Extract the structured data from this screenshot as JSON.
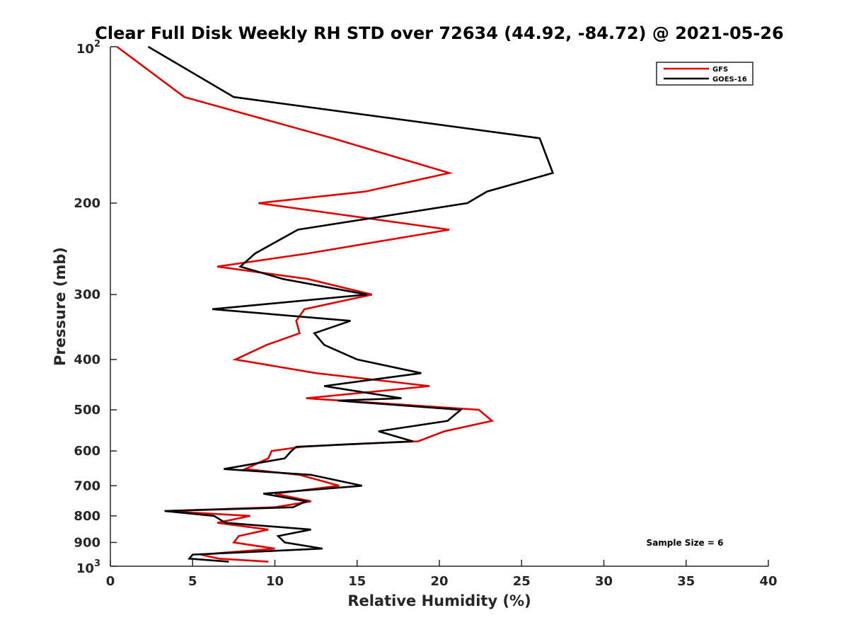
{
  "chart_data": {
    "type": "line",
    "title": "Clear Full Disk Weekly RH STD over 72634 (44.92, -84.72) @ 2021-05-26",
    "xlabel": "Relative Humidity (%)",
    "ylabel": "Pressure (mb)",
    "xlim": [
      0,
      40
    ],
    "ylim": [
      100,
      1000
    ],
    "y_scale": "log",
    "y_reversed": true,
    "x_ticks": [
      0,
      5,
      10,
      15,
      20,
      25,
      30,
      35,
      40
    ],
    "x_tick_labels": [
      "0",
      "5",
      "10",
      "15",
      "20",
      "25",
      "30",
      "35",
      "40"
    ],
    "y_ticks": [
      200,
      300,
      400,
      500,
      600,
      700,
      800,
      900
    ],
    "y_tick_labels": [
      "200",
      "300",
      "400",
      "500",
      "600",
      "700",
      "800",
      "900"
    ],
    "y_end_ticks": [
      {
        "value": 100,
        "base": "10",
        "exp": "2"
      },
      {
        "value": 1000,
        "base": "10",
        "exp": "3"
      }
    ],
    "grid": false,
    "legend_position": "top-right",
    "annotation": "Sample Size = 6",
    "series": [
      {
        "name": "GFS",
        "color": "#e00000",
        "points": [
          [
            0.4,
            100
          ],
          [
            4.5,
            125
          ],
          [
            13.5,
            150
          ],
          [
            20.6,
            175
          ],
          [
            15.5,
            190
          ],
          [
            9.0,
            200
          ],
          [
            20.6,
            225
          ],
          [
            12.0,
            250
          ],
          [
            6.5,
            265
          ],
          [
            12.0,
            280
          ],
          [
            15.9,
            300
          ],
          [
            11.8,
            320
          ],
          [
            11.3,
            337
          ],
          [
            11.5,
            356
          ],
          [
            9.5,
            375
          ],
          [
            7.6,
            400
          ],
          [
            12.5,
            425
          ],
          [
            19.4,
            450
          ],
          [
            11.9,
            475
          ],
          [
            22.4,
            500
          ],
          [
            23.2,
            525
          ],
          [
            20.3,
            550
          ],
          [
            18.7,
            575
          ],
          [
            14.5,
            582
          ],
          [
            11.6,
            589
          ],
          [
            9.8,
            600
          ],
          [
            9.6,
            620
          ],
          [
            8.2,
            650
          ],
          [
            11.5,
            667
          ],
          [
            13.9,
            700
          ],
          [
            10.0,
            725
          ],
          [
            12.2,
            750
          ],
          [
            10.0,
            770
          ],
          [
            3.3,
            783
          ],
          [
            8.5,
            800
          ],
          [
            6.5,
            825
          ],
          [
            9.6,
            850
          ],
          [
            7.8,
            875
          ],
          [
            7.5,
            900
          ],
          [
            10.0,
            925
          ],
          [
            5.5,
            950
          ],
          [
            6.6,
            967
          ],
          [
            9.6,
            980
          ]
        ]
      },
      {
        "name": "GOES-16",
        "color": "#000000",
        "points": [
          [
            2.3,
            100
          ],
          [
            7.5,
            125
          ],
          [
            26.1,
            150
          ],
          [
            26.9,
            175
          ],
          [
            22.9,
            190
          ],
          [
            21.7,
            200
          ],
          [
            11.4,
            225
          ],
          [
            8.8,
            250
          ],
          [
            7.9,
            265
          ],
          [
            10.5,
            280
          ],
          [
            15.6,
            300
          ],
          [
            6.2,
            320
          ],
          [
            14.6,
            337
          ],
          [
            12.4,
            356
          ],
          [
            13.0,
            375
          ],
          [
            15.0,
            400
          ],
          [
            18.9,
            425
          ],
          [
            13.0,
            450
          ],
          [
            17.7,
            475
          ],
          [
            13.8,
            480
          ],
          [
            21.3,
            500
          ],
          [
            20.5,
            525
          ],
          [
            16.3,
            550
          ],
          [
            18.4,
            575
          ],
          [
            11.3,
            589
          ],
          [
            11.0,
            600
          ],
          [
            10.6,
            620
          ],
          [
            6.9,
            650
          ],
          [
            12.2,
            667
          ],
          [
            15.3,
            700
          ],
          [
            9.3,
            725
          ],
          [
            11.9,
            750
          ],
          [
            11.1,
            770
          ],
          [
            3.3,
            783
          ],
          [
            6.3,
            800
          ],
          [
            7.0,
            825
          ],
          [
            12.2,
            850
          ],
          [
            10.2,
            875
          ],
          [
            10.6,
            900
          ],
          [
            12.9,
            925
          ],
          [
            5.0,
            950
          ],
          [
            4.8,
            967
          ],
          [
            7.2,
            980
          ]
        ]
      }
    ]
  }
}
